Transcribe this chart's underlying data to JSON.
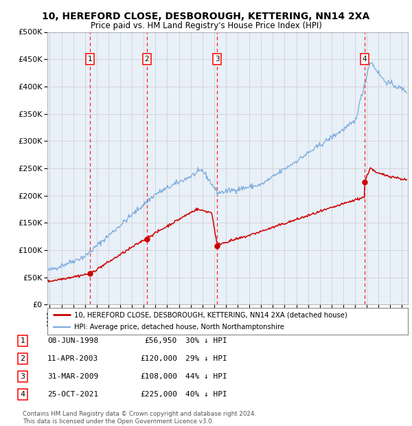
{
  "title": "10, HEREFORD CLOSE, DESBOROUGH, KETTERING, NN14 2XA",
  "subtitle": "Price paid vs. HM Land Registry's House Price Index (HPI)",
  "plot_bg_color": "#e8f0f8",
  "fig_bg_color": "#ffffff",
  "red_line_color": "#cc0000",
  "blue_line_color": "#7aaadd",
  "transactions": [
    {
      "num": 1,
      "date": "08-JUN-1998",
      "date_num": 1998.44,
      "price": 56950,
      "pct": "30% ↓ HPI"
    },
    {
      "num": 2,
      "date": "11-APR-2003",
      "date_num": 2003.28,
      "price": 120000,
      "pct": "29% ↓ HPI"
    },
    {
      "num": 3,
      "date": "31-MAR-2009",
      "date_num": 2009.25,
      "price": 108000,
      "pct": "44% ↓ HPI"
    },
    {
      "num": 4,
      "date": "25-OCT-2021",
      "date_num": 2021.82,
      "price": 225000,
      "pct": "40% ↓ HPI"
    }
  ],
  "ylim": [
    0,
    500000
  ],
  "xlim": [
    1994.8,
    2025.5
  ],
  "yticks": [
    0,
    50000,
    100000,
    150000,
    200000,
    250000,
    300000,
    350000,
    400000,
    450000,
    500000
  ],
  "xticks": [
    1995,
    1996,
    1997,
    1998,
    1999,
    2000,
    2001,
    2002,
    2003,
    2004,
    2005,
    2006,
    2007,
    2008,
    2009,
    2010,
    2011,
    2012,
    2013,
    2014,
    2015,
    2016,
    2017,
    2018,
    2019,
    2020,
    2021,
    2022,
    2023,
    2024,
    2025
  ],
  "legend_red": "10, HEREFORD CLOSE, DESBOROUGH, KETTERING, NN14 2XA (detached house)",
  "legend_blue": "HPI: Average price, detached house, North Northamptonshire",
  "footer": "Contains HM Land Registry data © Crown copyright and database right 2024.\nThis data is licensed under the Open Government Licence v3.0.",
  "table_rows": [
    [
      "1",
      "08-JUN-1998",
      "£56,950",
      "30% ↓ HPI"
    ],
    [
      "2",
      "11-APR-2003",
      "£120,000",
      "29% ↓ HPI"
    ],
    [
      "3",
      "31-MAR-2009",
      "£108,000",
      "44% ↓ HPI"
    ],
    [
      "4",
      "25-OCT-2021",
      "£225,000",
      "40% ↓ HPI"
    ]
  ]
}
